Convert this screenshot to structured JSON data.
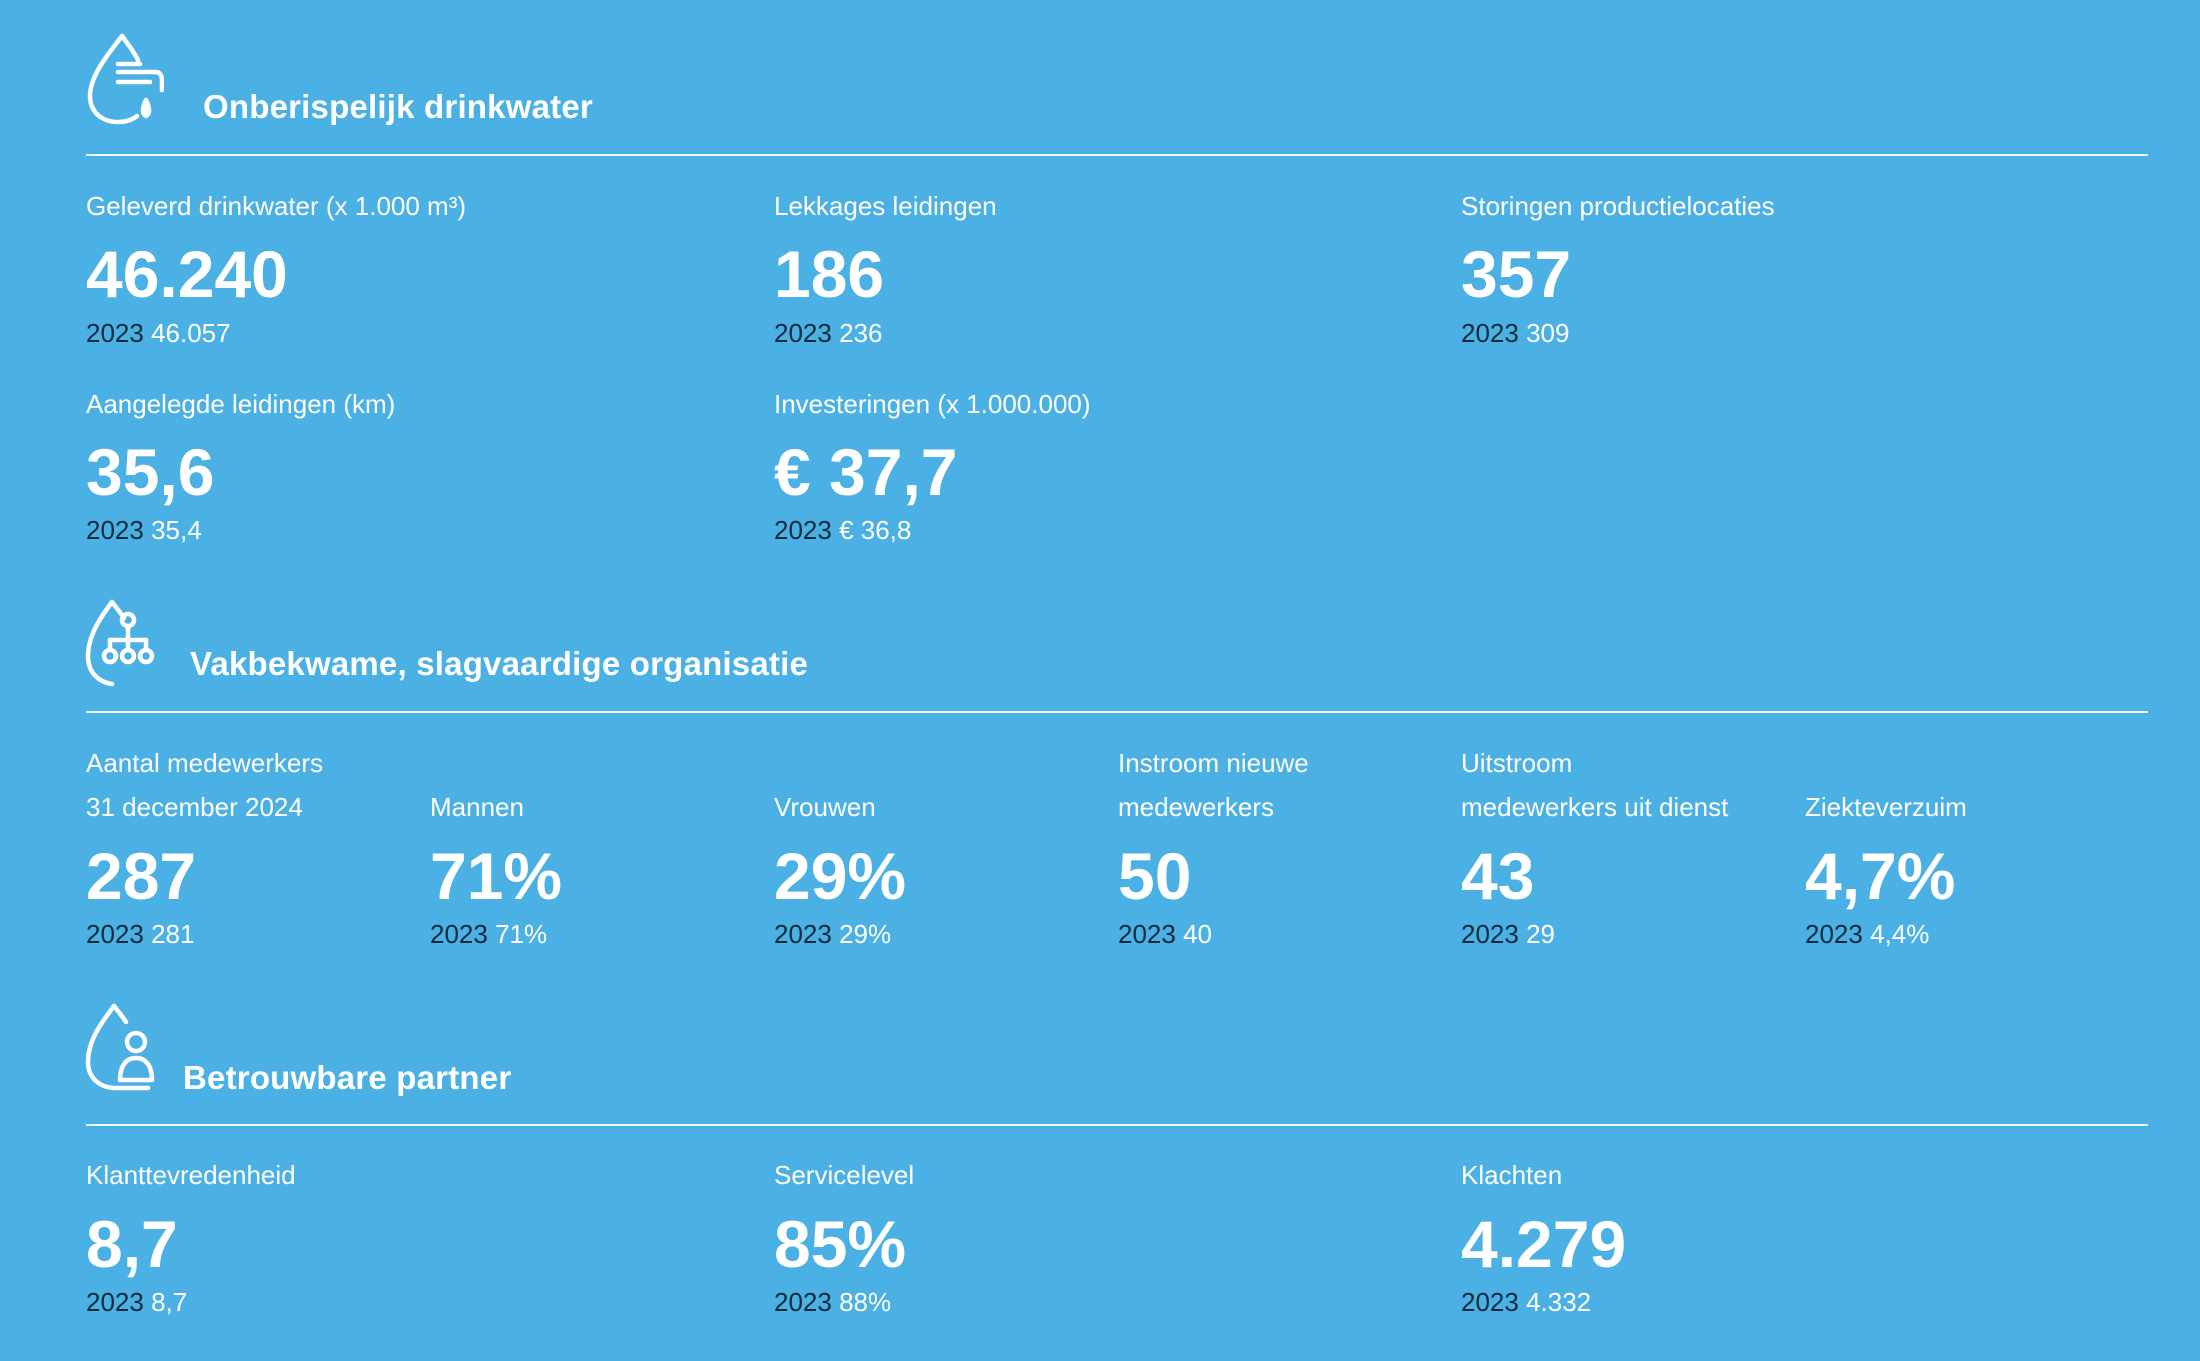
{
  "colors": {
    "background": "#4bb1e4",
    "text": "#ffffff",
    "year_text": "#0d2a3c"
  },
  "sections": [
    {
      "title": "Onberispelijk drinkwater",
      "icon": "water-tap-icon",
      "kpis": [
        {
          "label": "Geleverd drinkwater (x 1.000 m³)",
          "value": "46.240",
          "prev_year": "2023",
          "prev_value": "46.057"
        },
        {
          "label": "Lekkages leidingen",
          "value": "186",
          "prev_year": "2023",
          "prev_value": "236"
        },
        {
          "label": "Storingen productielocaties",
          "value": "357",
          "prev_year": "2023",
          "prev_value": "309"
        },
        {
          "label": "Aangelegde leidingen (km)",
          "value": "35,6",
          "prev_year": "2023",
          "prev_value": "35,4"
        },
        {
          "label": "Investeringen (x 1.000.000)",
          "value": "€ 37,7",
          "prev_year": "2023",
          "prev_value": "€ 36,8"
        }
      ]
    },
    {
      "title": "Vakbekwame, slagvaardige organisatie",
      "icon": "organisation-icon",
      "kpis": [
        {
          "label_line1": "Aantal medewerkers",
          "label_line2": "31 december 2024",
          "value": "287",
          "prev_year": "2023",
          "prev_value": "281"
        },
        {
          "label_line2": "Mannen",
          "value": "71%",
          "prev_year": "2023",
          "prev_value": "71%"
        },
        {
          "label_line2": "Vrouwen",
          "value": "29%",
          "prev_year": "2023",
          "prev_value": "29%"
        },
        {
          "label_line1": "Instroom nieuwe",
          "label_line2": "medewerkers",
          "value": "50",
          "prev_year": "2023",
          "prev_value": "40"
        },
        {
          "label_line1": "Uitstroom",
          "label_line2": "medewerkers uit dienst",
          "value": "43",
          "prev_year": "2023",
          "prev_value": "29"
        },
        {
          "label_line2": "Ziekteverzuim",
          "value": "4,7%",
          "prev_year": "2023",
          "prev_value": "4,4%"
        }
      ]
    },
    {
      "title": "Betrouwbare partner",
      "icon": "person-drop-icon",
      "kpis": [
        {
          "label": "Klanttevredenheid",
          "value": "8,7",
          "prev_year": "2023",
          "prev_value": "8,7"
        },
        {
          "label": "Servicelevel",
          "value": "85%",
          "prev_year": "2023",
          "prev_value": "88%"
        },
        {
          "label": "Klachten",
          "value": "4.279",
          "prev_year": "2023",
          "prev_value": "4.332"
        }
      ]
    }
  ]
}
